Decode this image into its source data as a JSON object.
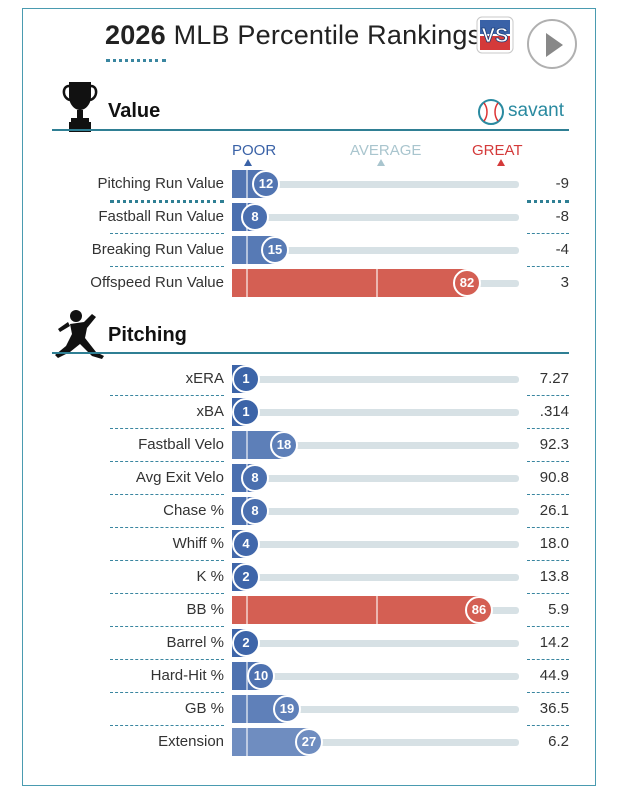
{
  "title": {
    "year": "2026",
    "rest": "MLB Percentile Rankings"
  },
  "logo": {
    "text": "VS"
  },
  "sections": [
    {
      "name": "Value",
      "icon": "trophy-icon"
    },
    {
      "name": "Pitching",
      "icon": "pitcher-icon"
    }
  ],
  "savant_label": "savant",
  "scale": {
    "poor": "POOR",
    "average": "AVERAGE",
    "great": "GREAT"
  },
  "colors": {
    "poor": "#3a62a7",
    "great": "#d45f53",
    "accent": "#2f7f94",
    "average": "#9bbcc6"
  },
  "chart_data": {
    "type": "bar",
    "xlim": [
      0,
      100
    ],
    "groups": [
      {
        "name": "Value",
        "metrics": [
          {
            "label": "Pitching Run Value",
            "percentile": 12,
            "value": "-9"
          },
          {
            "label": "Fastball Run Value",
            "percentile": 8,
            "value": "-8"
          },
          {
            "label": "Breaking Run Value",
            "percentile": 15,
            "value": "-4"
          },
          {
            "label": "Offspeed Run Value",
            "percentile": 82,
            "value": "3"
          }
        ]
      },
      {
        "name": "Pitching",
        "metrics": [
          {
            "label": "xERA",
            "percentile": 1,
            "value": "7.27"
          },
          {
            "label": "xBA",
            "percentile": 1,
            "value": ".314"
          },
          {
            "label": "Fastball Velo",
            "percentile": 18,
            "value": "92.3"
          },
          {
            "label": "Avg Exit Velo",
            "percentile": 8,
            "value": "90.8"
          },
          {
            "label": "Chase %",
            "percentile": 8,
            "value": "26.1"
          },
          {
            "label": "Whiff %",
            "percentile": 4,
            "value": "18.0"
          },
          {
            "label": "K %",
            "percentile": 2,
            "value": "13.8"
          },
          {
            "label": "BB %",
            "percentile": 86,
            "value": "5.9"
          },
          {
            "label": "Barrel %",
            "percentile": 2,
            "value": "14.2"
          },
          {
            "label": "Hard-Hit %",
            "percentile": 10,
            "value": "44.9"
          },
          {
            "label": "GB %",
            "percentile": 19,
            "value": "36.5"
          },
          {
            "label": "Extension",
            "percentile": 27,
            "value": "6.2"
          }
        ]
      }
    ]
  }
}
